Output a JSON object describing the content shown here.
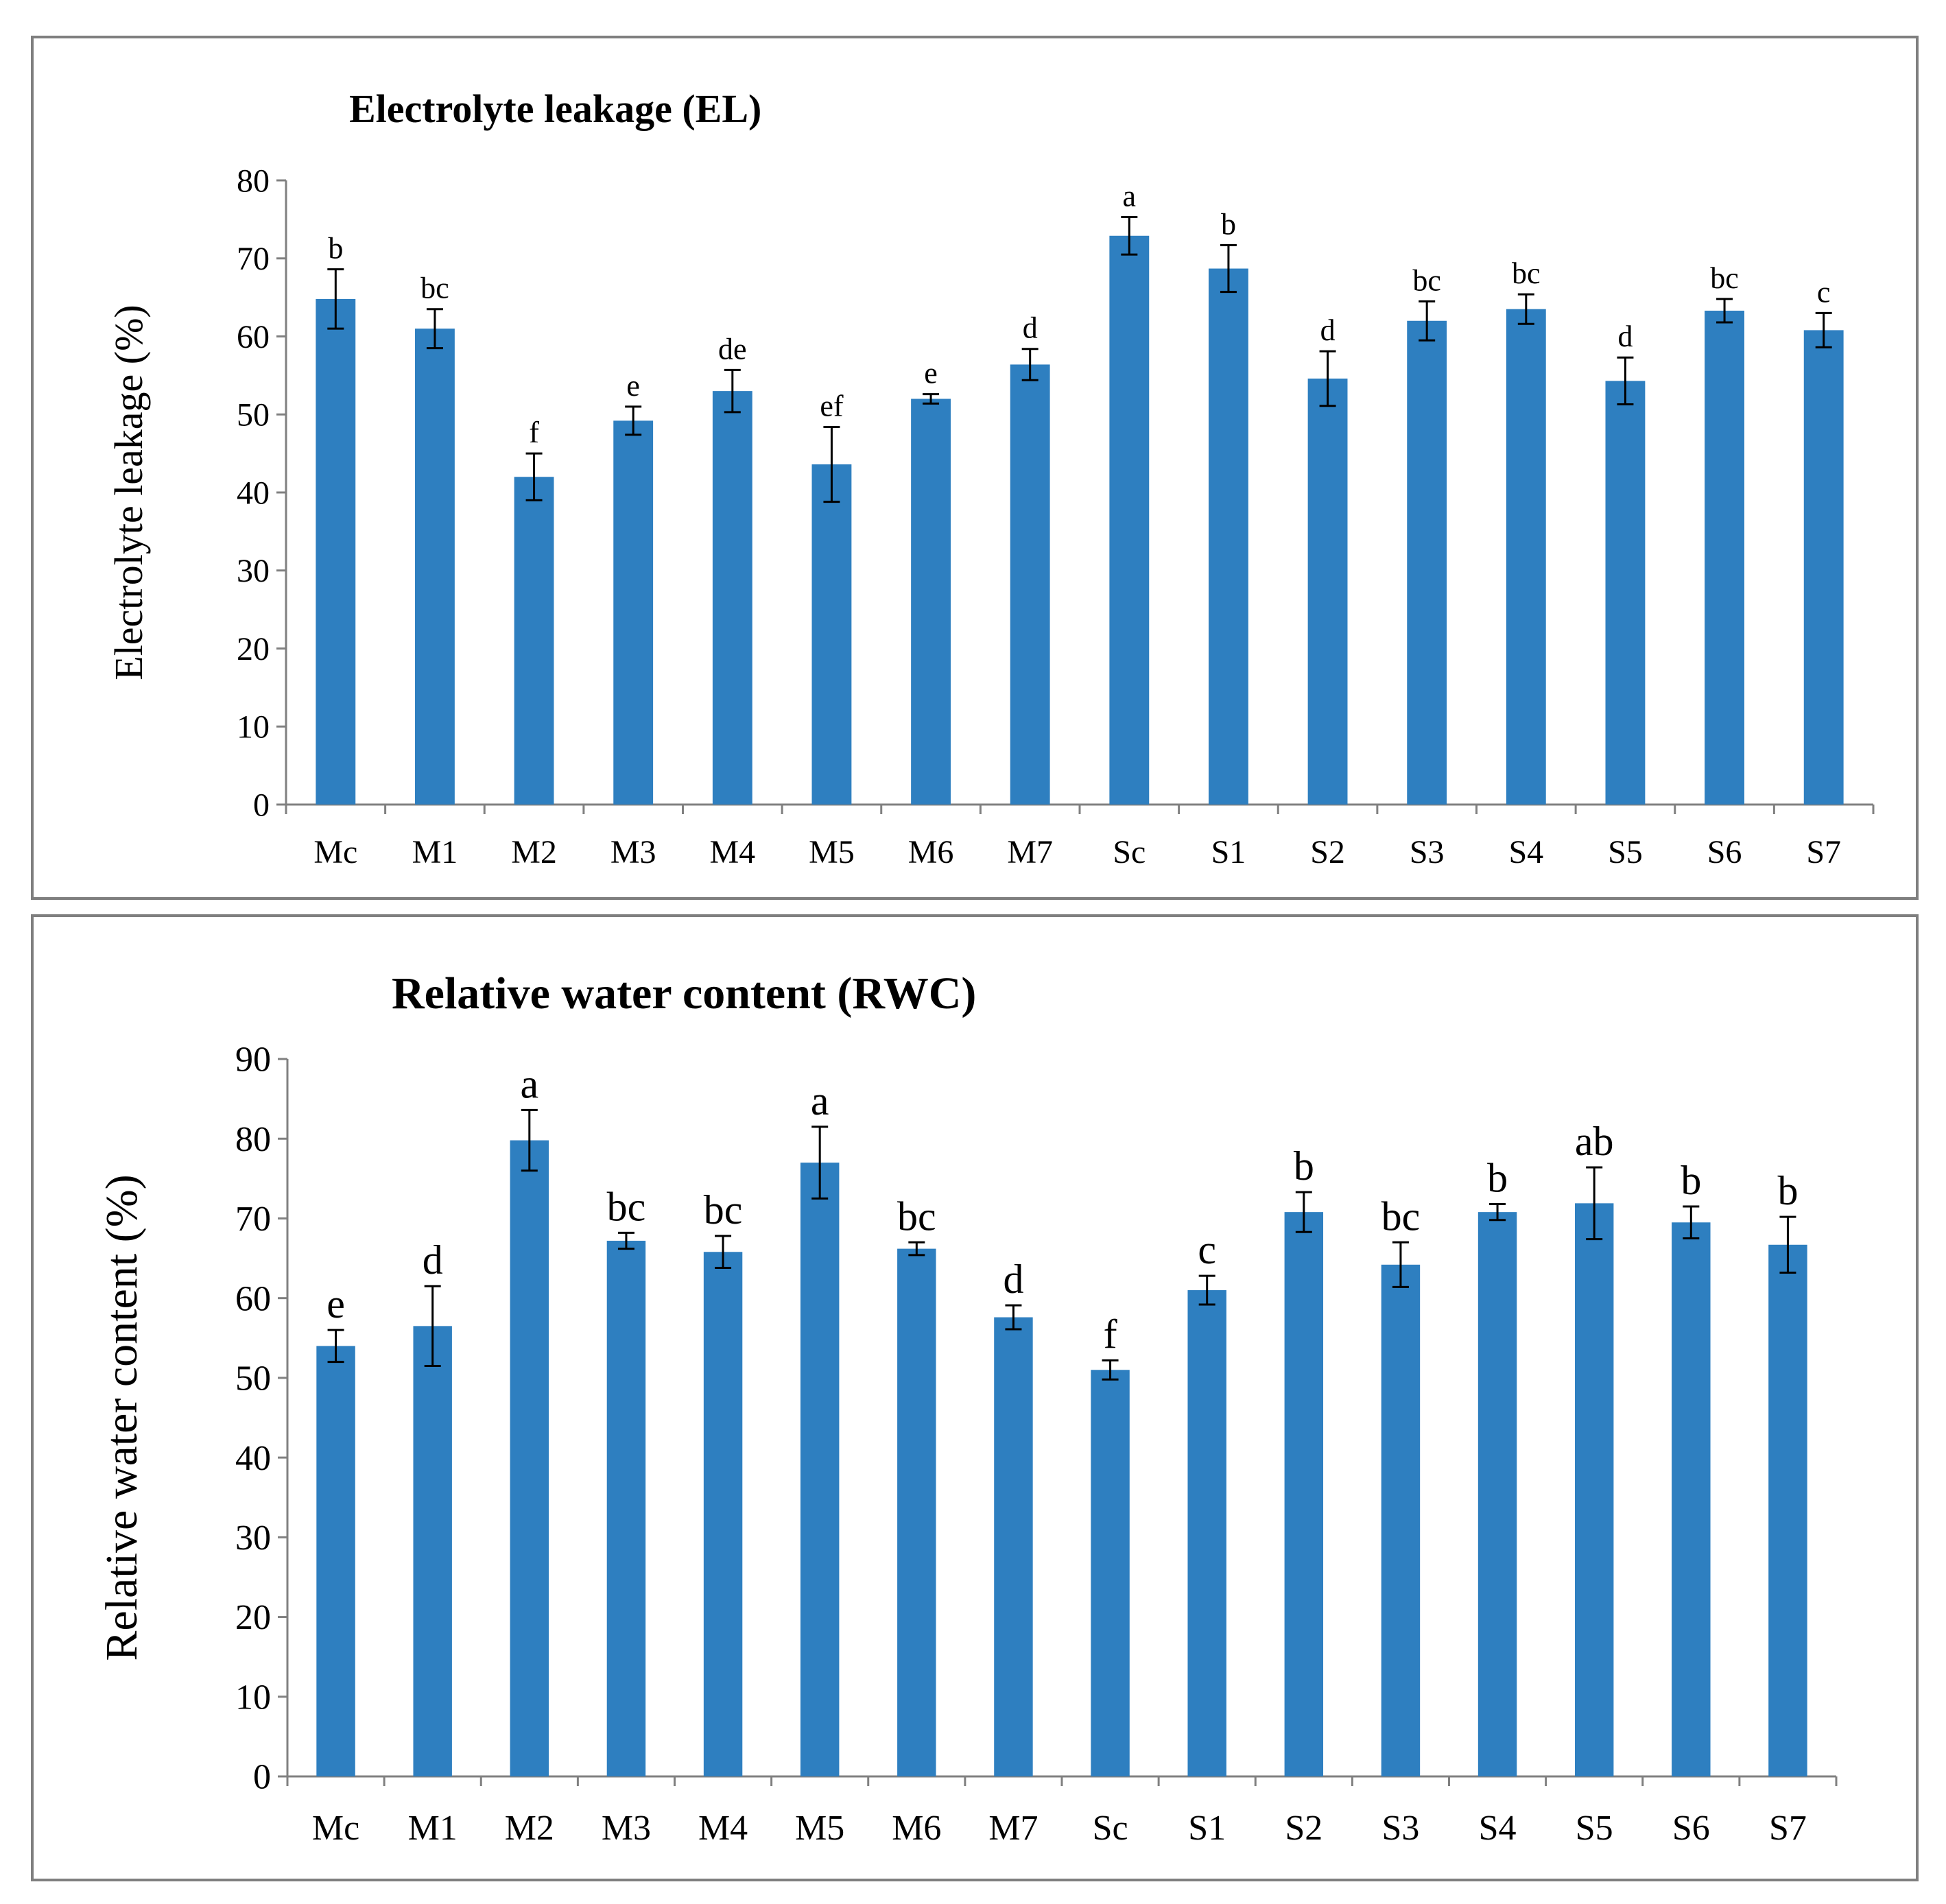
{
  "chart_data": [
    {
      "type": "bar",
      "title": "Electrolyte leakage (EL)",
      "xlabel": "",
      "ylabel": "Electrolyte leakage (%)",
      "ylim": [
        0,
        80
      ],
      "yticks": [
        0,
        10,
        20,
        30,
        40,
        50,
        60,
        70,
        80
      ],
      "categories": [
        "Mc",
        "M1",
        "M2",
        "M3",
        "M4",
        "M5",
        "M6",
        "M7",
        "Sc",
        "S1",
        "S2",
        "S3",
        "S4",
        "S5",
        "S6",
        "S7"
      ],
      "values": [
        64.8,
        61.0,
        42.0,
        49.2,
        53.0,
        43.6,
        52.0,
        56.4,
        72.9,
        68.7,
        54.6,
        62.0,
        63.5,
        54.3,
        63.3,
        60.8
      ],
      "errors": [
        3.8,
        2.5,
        3.0,
        1.8,
        2.7,
        4.8,
        0.6,
        2.0,
        2.4,
        3.0,
        3.5,
        2.5,
        1.9,
        3.0,
        1.5,
        2.2
      ],
      "significance": [
        "b",
        "bc",
        "f",
        "e",
        "de",
        "ef",
        "e",
        "d",
        "a",
        "b",
        "d",
        "bc",
        "bc",
        "d",
        "bc",
        "c"
      ],
      "grid": false,
      "bar_color": "#2e7fc0"
    },
    {
      "type": "bar",
      "title": "Relative water content (RWC)",
      "xlabel": "",
      "ylabel": "Relative water content (%)",
      "ylim": [
        0,
        90
      ],
      "yticks": [
        0,
        10,
        20,
        30,
        40,
        50,
        60,
        70,
        80,
        90
      ],
      "categories": [
        "Mc",
        "M1",
        "M2",
        "M3",
        "M4",
        "M5",
        "M6",
        "M7",
        "Sc",
        "S1",
        "S2",
        "S3",
        "S4",
        "S5",
        "S6",
        "S7"
      ],
      "values": [
        54.0,
        56.5,
        79.8,
        67.2,
        65.8,
        77.0,
        66.2,
        57.6,
        51.0,
        61.0,
        70.8,
        64.2,
        70.8,
        71.9,
        69.5,
        66.7
      ],
      "errors": [
        2.0,
        5.0,
        3.8,
        1.0,
        2.0,
        4.5,
        0.8,
        1.5,
        1.2,
        1.8,
        2.5,
        2.8,
        1.0,
        4.5,
        2.0,
        3.5
      ],
      "significance": [
        "e",
        "d",
        "a",
        "bc",
        "bc",
        "a",
        "bc",
        "d",
        "f",
        "c",
        "b",
        "bc",
        "b",
        "ab",
        "b",
        "b"
      ],
      "grid": false,
      "bar_color": "#2e7fc0"
    }
  ]
}
